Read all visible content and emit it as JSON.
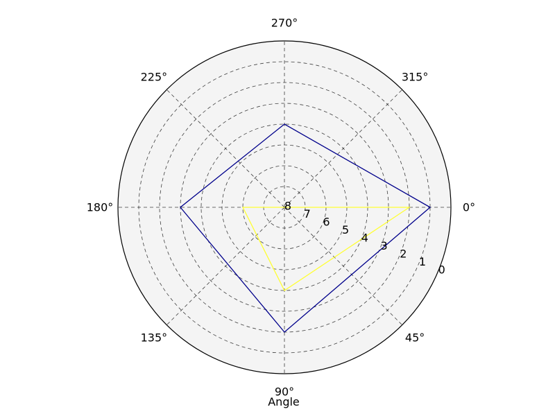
{
  "chart_data": {
    "type": "line",
    "projection": "polar",
    "xlabel": "Angle",
    "ylabel": "",
    "theta_direction": "clockwise",
    "theta_zero_location": "right",
    "theta_ticks": [
      0,
      45,
      90,
      135,
      180,
      225,
      270,
      315
    ],
    "theta_tick_labels": [
      "0°",
      "45°",
      "90°",
      "135°",
      "180°",
      "225°",
      "270°",
      "315°"
    ],
    "r_axis_reversed": true,
    "rlim": [
      8,
      0
    ],
    "r_ticks": [
      0,
      1,
      2,
      3,
      4,
      5,
      6,
      7,
      8
    ],
    "r_tick_labels": [
      "0",
      "1",
      "2",
      "3",
      "4",
      "5",
      "6",
      "7",
      "8"
    ],
    "r_label_angle": 22.5,
    "grid": true,
    "series": [
      {
        "color": "#00008b",
        "theta": [
          0,
          90,
          180,
          270
        ],
        "r": [
          1,
          2,
          3,
          4
        ]
      },
      {
        "color": "#ffff33",
        "theta": [
          0,
          90,
          180,
          270
        ],
        "r": [
          2,
          4,
          6,
          8
        ]
      }
    ]
  },
  "colors": {
    "background": "#f4f4f4",
    "frame": "#000000"
  }
}
